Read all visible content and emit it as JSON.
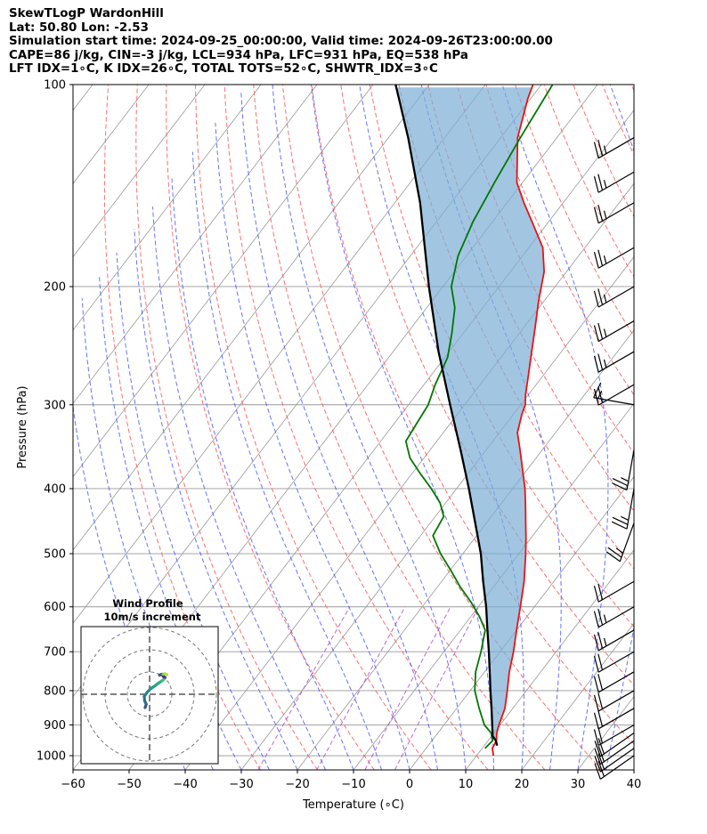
{
  "header": {
    "line1": "SkewTLogP WardonHill",
    "line2": "Lat: 50.80   Lon: -2.53",
    "line3": "Simulation start time: 2024-09-25_00:00:00, Valid time: 2024-09-26T23:00:00.00",
    "line4": "CAPE=86 j/kg, CIN=-3 j/kg, LCL=934 hPa, LFC=931 hPa, EQ=538 hPa",
    "line5": "LFT IDX=1∘C, K IDX=26∘C, TOTAL TOTS=52∘C, SHWTR_IDX=3∘C"
  },
  "colors": {
    "temperature": "#ee1111",
    "dewpoint": "#007700",
    "parcel": "#000000",
    "cape_fill": "#7aaed4",
    "cin_fill": "#e8a98a",
    "dry_adiabat": "#ff5555",
    "moist_adiabat": "#3344ff",
    "mixing_ratio": "#aa44cc",
    "isotherm": "#999999",
    "isobar": "#999999"
  },
  "chart_data": {
    "type": "skew-t",
    "xlabel": "Temperature (∘C)",
    "ylabel": "Pressure (hPa)",
    "xlim": [
      -60,
      40
    ],
    "ylim": [
      1050,
      100
    ],
    "y_scale": "log",
    "grid": true,
    "xticks": [
      "−60",
      "−50",
      "−40",
      "−30",
      "−20",
      "−10",
      "0",
      "10",
      "20",
      "30",
      "40"
    ],
    "yticks": [
      "100",
      "200",
      "300",
      "400",
      "500",
      "600",
      "700",
      "800",
      "900",
      "1000"
    ],
    "series": [
      {
        "key": "temperature",
        "points": [
          [
            1000,
            13
          ],
          [
            975,
            11.8
          ],
          [
            950,
            11.5
          ],
          [
            925,
            10.5
          ],
          [
            900,
            9.8
          ],
          [
            875,
            9.2
          ],
          [
            850,
            8.6
          ],
          [
            800,
            6.6
          ],
          [
            750,
            4.4
          ],
          [
            700,
            2.4
          ],
          [
            650,
            0.0
          ],
          [
            600,
            -2.5
          ],
          [
            550,
            -5.3
          ],
          [
            500,
            -8.8
          ],
          [
            475,
            -10.8
          ],
          [
            450,
            -13.0
          ],
          [
            425,
            -15.3
          ],
          [
            400,
            -17.8
          ],
          [
            375,
            -20.8
          ],
          [
            350,
            -24.0
          ],
          [
            330,
            -26.8
          ],
          [
            310,
            -28.5
          ],
          [
            300,
            -29.2
          ],
          [
            290,
            -30.5
          ],
          [
            270,
            -32.8
          ],
          [
            250,
            -35.3
          ],
          [
            230,
            -38.0
          ],
          [
            210,
            -41.0
          ],
          [
            190,
            -44.0
          ],
          [
            175,
            -47.5
          ],
          [
            160,
            -53.0
          ],
          [
            150,
            -57.0
          ],
          [
            140,
            -61.0
          ],
          [
            120,
            -67.0
          ],
          [
            105,
            -70.5
          ],
          [
            100,
            -71.5
          ]
        ]
      },
      {
        "key": "dewpoint",
        "points": [
          [
            975,
            10.5
          ],
          [
            950,
            10.8
          ],
          [
            925,
            9.5
          ],
          [
            900,
            7.2
          ],
          [
            850,
            4.0
          ],
          [
            800,
            0.8
          ],
          [
            750,
            -1.6
          ],
          [
            700,
            -3.4
          ],
          [
            650,
            -5.6
          ],
          [
            620,
            -8.5
          ],
          [
            590,
            -12.0
          ],
          [
            560,
            -16.0
          ],
          [
            530,
            -19.8
          ],
          [
            500,
            -24.0
          ],
          [
            470,
            -27.8
          ],
          [
            440,
            -28.5
          ],
          [
            420,
            -31.0
          ],
          [
            400,
            -34.5
          ],
          [
            380,
            -38.5
          ],
          [
            360,
            -42.5
          ],
          [
            340,
            -45.5
          ],
          [
            320,
            -46.0
          ],
          [
            300,
            -46.5
          ],
          [
            280,
            -48.0
          ],
          [
            255,
            -49.5
          ],
          [
            235,
            -52.0
          ],
          [
            215,
            -55.0
          ],
          [
            200,
            -58.5
          ],
          [
            180,
            -61.5
          ],
          [
            160,
            -63.5
          ],
          [
            140,
            -65.0
          ],
          [
            120,
            -66.5
          ],
          [
            100,
            -68.0
          ]
        ]
      },
      {
        "key": "parcel",
        "points": [
          [
            966,
            12.3
          ],
          [
            950,
            11.4
          ],
          [
            935,
            10.2
          ],
          [
            900,
            8.6
          ],
          [
            850,
            6.2
          ],
          [
            800,
            3.6
          ],
          [
            750,
            0.9
          ],
          [
            700,
            -2.0
          ],
          [
            650,
            -5.2
          ],
          [
            600,
            -8.6
          ],
          [
            550,
            -12.6
          ],
          [
            500,
            -16.8
          ],
          [
            450,
            -22.0
          ],
          [
            400,
            -27.8
          ],
          [
            350,
            -34.6
          ],
          [
            300,
            -42.6
          ],
          [
            250,
            -51.9
          ],
          [
            200,
            -62.5
          ],
          [
            150,
            -75.5
          ],
          [
            120,
            -86.5
          ],
          [
            100,
            -96.0
          ]
        ]
      }
    ],
    "wind_barbs": [
      {
        "pressure": 1000,
        "direction_deg": 235,
        "speed_kt": 20
      },
      {
        "pressure": 975,
        "direction_deg": 235,
        "speed_kt": 20
      },
      {
        "pressure": 950,
        "direction_deg": 235,
        "speed_kt": 20
      },
      {
        "pressure": 925,
        "direction_deg": 235,
        "speed_kt": 20
      },
      {
        "pressure": 900,
        "direction_deg": 240,
        "speed_kt": 20
      },
      {
        "pressure": 850,
        "direction_deg": 240,
        "speed_kt": 20
      },
      {
        "pressure": 800,
        "direction_deg": 240,
        "speed_kt": 20
      },
      {
        "pressure": 750,
        "direction_deg": 240,
        "speed_kt": 20
      },
      {
        "pressure": 700,
        "direction_deg": 240,
        "speed_kt": 20
      },
      {
        "pressure": 650,
        "direction_deg": 240,
        "speed_kt": 25
      },
      {
        "pressure": 600,
        "direction_deg": 240,
        "speed_kt": 25
      },
      {
        "pressure": 550,
        "direction_deg": 240,
        "speed_kt": 20
      },
      {
        "pressure": 450,
        "direction_deg": 200,
        "speed_kt": 25
      },
      {
        "pressure": 400,
        "direction_deg": 190,
        "speed_kt": 25
      },
      {
        "pressure": 350,
        "direction_deg": 190,
        "speed_kt": 25
      },
      {
        "pressure": 300,
        "direction_deg": 280,
        "speed_kt": 15
      },
      {
        "pressure": 280,
        "direction_deg": 240,
        "speed_kt": 20
      },
      {
        "pressure": 250,
        "direction_deg": 240,
        "speed_kt": 25
      },
      {
        "pressure": 225,
        "direction_deg": 240,
        "speed_kt": 25
      },
      {
        "pressure": 200,
        "direction_deg": 240,
        "speed_kt": 25
      },
      {
        "pressure": 175,
        "direction_deg": 240,
        "speed_kt": 25
      },
      {
        "pressure": 150,
        "direction_deg": 240,
        "speed_kt": 25
      },
      {
        "pressure": 135,
        "direction_deg": 240,
        "speed_kt": 25
      },
      {
        "pressure": 120,
        "direction_deg": 240,
        "speed_kt": 25
      }
    ],
    "inset": {
      "title_line1": "Wind Profile",
      "title_line2": "10m/s increment",
      "ring_increment_ms": 10,
      "rings": 3,
      "hodograph_uv": [
        [
          -2.0,
          -6.0
        ],
        [
          -1.5,
          -4.5
        ],
        [
          -2.2,
          -3.0
        ],
        [
          -2.4,
          -1.0
        ],
        [
          -1.0,
          1.0
        ],
        [
          0.5,
          2.5
        ],
        [
          2.0,
          3.5
        ],
        [
          4.0,
          5.0
        ],
        [
          5.5,
          6.0
        ],
        [
          6.5,
          6.8
        ],
        [
          7.0,
          7.5
        ],
        [
          6.2,
          8.0
        ],
        [
          5.5,
          9.0
        ],
        [
          4.5,
          8.6
        ],
        [
          6.0,
          9.0
        ],
        [
          7.0,
          9.2
        ],
        [
          7.8,
          8.8
        ]
      ]
    }
  }
}
